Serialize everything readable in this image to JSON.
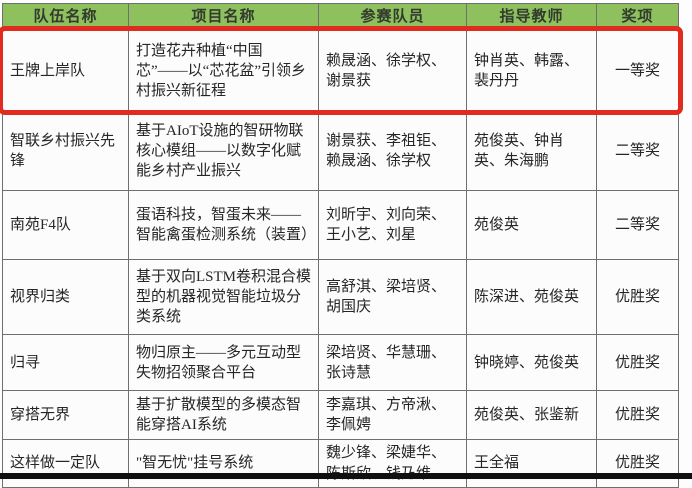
{
  "table": {
    "headers": [
      "队伍名称",
      "项目名称",
      "参赛队员",
      "指导教师",
      "奖项"
    ],
    "rows": [
      {
        "team": "王牌上岸队",
        "project": "打造花卉种植“中国芯”——以“芯花盆”引领乡村振兴新征程",
        "members": "赖晟涵、徐学权、谢景获",
        "teachers": "钟肖英、韩露、裴丹丹",
        "award": "一等奖",
        "highlighted": true
      },
      {
        "team": "智联乡村振兴先锋",
        "project": "基于AIoT设施的智研物联核心模组——以数字化赋能乡村产业振兴",
        "members": "谢景获、李祖钜、赖晟涵、徐学权",
        "teachers": "苑俊英、钟肖英、朱海鹏",
        "award": "二等奖",
        "highlighted": false
      },
      {
        "team": "南苑F4队",
        "project": "蛋语科技，智蛋未来——智能禽蛋检测系统（装置）",
        "members": "刘昕宇、刘向荣、王小艺、刘星",
        "teachers": "苑俊英",
        "award": "二等奖",
        "highlighted": false
      },
      {
        "team": "视界归类",
        "project": "基于双向LSTM卷积混合模型的机器视觉智能垃圾分类系统",
        "members": "高舒淇、梁培贤、胡国庆",
        "teachers": "陈深进、苑俊英",
        "award": "优胜奖",
        "highlighted": false
      },
      {
        "team": "归寻",
        "project": "物归原主——多元互动型失物招领聚合平台",
        "members": "梁培贤、华慧珊、张诗慧",
        "teachers": "钟晓婷、苑俊英",
        "award": "优胜奖",
        "highlighted": false
      },
      {
        "team": "穿搭无界",
        "project": "基于扩散模型的多模态智能穿搭AI系统",
        "members": "李嘉琪、方帝湫、李佩娉",
        "teachers": "苑俊英、张鉴新",
        "award": "优胜奖",
        "highlighted": false
      },
      {
        "team": "这样做一定队",
        "project": "\"智无忧\"挂号系统",
        "members": "魏少锋、梁婕华、陈斯欣、钱乃维",
        "teachers": "王全福",
        "award": "优胜奖",
        "highlighted": false
      }
    ]
  },
  "annotations": {
    "highlighted_row_award": "一等奖"
  },
  "colors": {
    "header_bg": "#8ec05e",
    "header_text": "#333b2e",
    "body_text": "#262626",
    "border": "#6f6f6f",
    "highlight": "#e02b1e",
    "bottom_bar": "#101010",
    "page_bg": "#fdfdfd"
  }
}
